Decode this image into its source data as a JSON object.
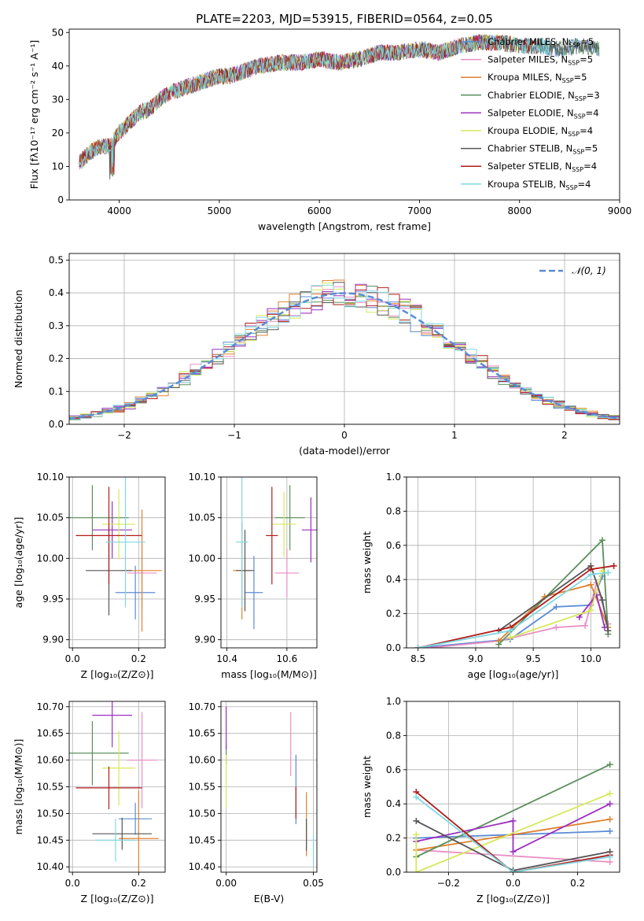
{
  "figure_title": "PLATE=2203, MJD=53915, FIBERID=0564, z=0.05",
  "models": [
    {
      "name": "Chabrier MILES",
      "nssp": "5",
      "color": "#5b8bd6"
    },
    {
      "name": "Salpeter MILES",
      "nssp": "5",
      "color": "#e88fc4"
    },
    {
      "name": "Kroupa MILES",
      "nssp": "5",
      "color": "#e0822e"
    },
    {
      "name": "Chabrier ELODIE",
      "nssp": "3",
      "color": "#5c8f5c"
    },
    {
      "name": "Salpeter ELODIE",
      "nssp": "4",
      "color": "#9b2fbf"
    },
    {
      "name": "Kroupa ELODIE",
      "nssp": "4",
      "color": "#d6e85a"
    },
    {
      "name": "Chabrier STELIB",
      "nssp": "5",
      "color": "#555555"
    },
    {
      "name": "Salpeter STELIB",
      "nssp": "4",
      "color": "#b31b1b"
    },
    {
      "name": "Kroupa STELIB",
      "nssp": "4",
      "color": "#7fd8e0"
    }
  ],
  "chart_data": [
    {
      "id": "spectrum",
      "type": "line",
      "xlabel": "wavelength [Angstrom, rest frame]",
      "ylabel": "Flux [fλ10⁻¹⁷ erg cm⁻² s⁻¹ A⁻¹]",
      "xlim": [
        3500,
        9000
      ],
      "ylim": [
        0,
        51
      ],
      "xticks": [
        4000,
        5000,
        6000,
        7000,
        8000,
        9000
      ],
      "yticks": [
        0,
        10,
        20,
        30,
        40,
        50
      ],
      "grid": false,
      "legend": "right",
      "continuum": [
        [
          3600,
          11
        ],
        [
          3700,
          14
        ],
        [
          3800,
          16
        ],
        [
          3900,
          16
        ],
        [
          4000,
          20
        ],
        [
          4100,
          23
        ],
        [
          4200,
          26
        ],
        [
          4300,
          27
        ],
        [
          4400,
          30
        ],
        [
          4500,
          32
        ],
        [
          4600,
          33
        ],
        [
          4700,
          34
        ],
        [
          4800,
          35
        ],
        [
          4900,
          36
        ],
        [
          5000,
          37
        ],
        [
          5100,
          37
        ],
        [
          5200,
          38
        ],
        [
          5300,
          39
        ],
        [
          5400,
          40
        ],
        [
          5600,
          41
        ],
        [
          5800,
          41
        ],
        [
          6000,
          42
        ],
        [
          6200,
          41
        ],
        [
          6400,
          42
        ],
        [
          6600,
          44
        ],
        [
          6800,
          44
        ],
        [
          7000,
          45
        ],
        [
          7200,
          44
        ],
        [
          7400,
          46
        ],
        [
          7600,
          47
        ],
        [
          7800,
          47
        ],
        [
          8000,
          46
        ],
        [
          8200,
          46
        ],
        [
          8400,
          45
        ],
        [
          8600,
          46
        ],
        [
          8800,
          45
        ]
      ]
    },
    {
      "id": "residuals",
      "type": "histogram",
      "xlabel": "(data-model)/error",
      "ylabel": "Normed distribution",
      "xlim": [
        -2.5,
        2.5
      ],
      "ylim": [
        0,
        0.52
      ],
      "xticks": [
        -2,
        -1,
        0,
        1,
        2
      ],
      "xticklabels": [
        "−2",
        "−1",
        "0",
        "1",
        "2"
      ],
      "yticks": [
        0.0,
        0.1,
        0.2,
        0.3,
        0.4,
        0.5
      ],
      "grid": true,
      "legend": "top-right",
      "reference_label": "𝒩(0, 1)",
      "reference_color": "#5b8bd6"
    },
    {
      "id": "age-vs-Z",
      "type": "scatter",
      "xlabel": "Z [log₁₀(Z/Z⊙)]",
      "ylabel": "age  [log₁₀(age/yr)]",
      "xlim": [
        -0.01,
        0.28
      ],
      "ylim": [
        9.89,
        10.1
      ],
      "xticks": [
        0.0,
        0.2
      ],
      "yticks": [
        9.9,
        9.95,
        10.0,
        10.05,
        10.1
      ],
      "grid": true,
      "points": [
        {
          "x": 0.19,
          "y": 9.958,
          "xerr": 0.06,
          "yerr": 0.033
        },
        {
          "x": 0.21,
          "y": 9.982,
          "xerr": 0.045,
          "yerr": 0.045
        },
        {
          "x": 0.21,
          "y": 9.985,
          "xerr": 0.06,
          "yerr": 0.075
        },
        {
          "x": 0.06,
          "y": 10.05,
          "xerr": 0.11,
          "yerr": 0.04
        },
        {
          "x": 0.12,
          "y": 10.035,
          "xerr": 0.06,
          "yerr": 0.035
        },
        {
          "x": 0.14,
          "y": 10.042,
          "xerr": 0.05,
          "yerr": 0.043
        },
        {
          "x": 0.11,
          "y": 9.985,
          "xerr": 0.07,
          "yerr": 0.055
        },
        {
          "x": 0.11,
          "y": 10.028,
          "xerr": 0.1,
          "yerr": 0.06
        },
        {
          "x": 0.16,
          "y": 10.02,
          "xerr": 0.06,
          "yerr": 0.08
        }
      ]
    },
    {
      "id": "age-vs-mass",
      "type": "scatter",
      "xlabel": "mass [log₁₀(M/M⊙)]",
      "ylabel": "",
      "xlim": [
        10.38,
        10.7
      ],
      "ylim": [
        9.89,
        10.1
      ],
      "xticks": [
        10.4,
        10.6
      ],
      "yticks": [
        9.9,
        9.95,
        10.0,
        10.05,
        10.1
      ],
      "grid": true,
      "points": [
        {
          "x": 10.49,
          "y": 9.958,
          "xerr": 0.03,
          "yerr": 0.045
        },
        {
          "x": 10.6,
          "y": 9.982,
          "xerr": 0.04,
          "yerr": 0.03
        },
        {
          "x": 10.45,
          "y": 9.985,
          "xerr": 0.03,
          "yerr": 0.06
        },
        {
          "x": 10.61,
          "y": 10.05,
          "xerr": 0.05,
          "yerr": 0.04
        },
        {
          "x": 10.68,
          "y": 10.035,
          "xerr": 0.03,
          "yerr": 0.04
        },
        {
          "x": 10.59,
          "y": 10.042,
          "xerr": 0.04,
          "yerr": 0.04
        },
        {
          "x": 10.46,
          "y": 9.985,
          "xerr": 0.03,
          "yerr": 0.05
        },
        {
          "x": 10.55,
          "y": 10.028,
          "xerr": 0.02,
          "yerr": 0.06
        },
        {
          "x": 10.45,
          "y": 10.02,
          "xerr": 0.02,
          "yerr": 0.08
        }
      ]
    },
    {
      "id": "weight-vs-age",
      "type": "line",
      "xlabel": "age  [log₁₀(age/yr)]",
      "ylabel": "mass weight",
      "xlim": [
        8.4,
        10.25
      ],
      "ylim": [
        0,
        1.0
      ],
      "xticks": [
        8.5,
        9.0,
        9.5,
        10.0
      ],
      "yticks": [
        0.0,
        0.2,
        0.4,
        0.6,
        0.8,
        1.0
      ],
      "grid": true,
      "series": [
        {
          "x": [
            8.5,
            9.3,
            9.7,
            10.0,
            10.1
          ],
          "y": [
            0.0,
            0.05,
            0.24,
            0.25,
            0.42
          ]
        },
        {
          "x": [
            8.6,
            9.2,
            9.7,
            9.95,
            10.05,
            10.15
          ],
          "y": [
            0.0,
            0.04,
            0.12,
            0.13,
            0.38,
            0.14
          ]
        },
        {
          "x": [
            9.2,
            9.6,
            10.0,
            10.15
          ],
          "y": [
            0.04,
            0.3,
            0.37,
            0.12
          ]
        },
        {
          "x": [
            9.2,
            10.1,
            10.15
          ],
          "y": [
            0.02,
            0.63,
            0.08
          ]
        },
        {
          "x": [
            9.9,
            10.05,
            10.12
          ],
          "y": [
            0.18,
            0.31,
            0.12
          ]
        },
        {
          "x": [
            9.3,
            10.0,
            10.1
          ],
          "y": [
            0.06,
            0.22,
            0.45
          ]
        },
        {
          "x": [
            9.2,
            10.0,
            10.1,
            10.15
          ],
          "y": [
            0.1,
            0.48,
            0.28,
            0.1
          ]
        },
        {
          "x": [
            8.5,
            9.3,
            10.0,
            10.2
          ],
          "y": [
            0.0,
            0.12,
            0.46,
            0.48
          ]
        },
        {
          "x": [
            8.5,
            9.3,
            10.0,
            10.15
          ],
          "y": [
            0.0,
            0.1,
            0.43,
            0.44
          ]
        }
      ]
    },
    {
      "id": "mass-vs-Z",
      "type": "scatter",
      "xlabel": "Z [log₁₀(Z/Z⊙)]",
      "ylabel": "mass [log₁₀(M/M⊙)]",
      "xlim": [
        -0.01,
        0.28
      ],
      "ylim": [
        10.39,
        10.71
      ],
      "xticks": [
        0.0,
        0.2
      ],
      "yticks": [
        10.4,
        10.45,
        10.5,
        10.55,
        10.6,
        10.65,
        10.7
      ],
      "grid": true,
      "points": [
        {
          "x": 0.19,
          "y": 10.49,
          "xerr": 0.05,
          "yerr": 0.03
        },
        {
          "x": 0.21,
          "y": 10.6,
          "xerr": 0.045,
          "yerr": 0.09
        },
        {
          "x": 0.2,
          "y": 10.453,
          "xerr": 0.06,
          "yerr": 0.09
        },
        {
          "x": 0.06,
          "y": 10.613,
          "xerr": 0.11,
          "yerr": 0.06
        },
        {
          "x": 0.12,
          "y": 10.684,
          "xerr": 0.06,
          "yerr": 0.06
        },
        {
          "x": 0.14,
          "y": 10.585,
          "xerr": 0.05,
          "yerr": 0.07
        },
        {
          "x": 0.15,
          "y": 10.462,
          "xerr": 0.09,
          "yerr": 0.03
        },
        {
          "x": 0.11,
          "y": 10.548,
          "xerr": 0.1,
          "yerr": 0.04
        },
        {
          "x": 0.13,
          "y": 10.45,
          "xerr": 0.06,
          "yerr": 0.04
        }
      ]
    },
    {
      "id": "mass-vs-EBV",
      "type": "scatter",
      "xlabel": "E(B-V)",
      "ylabel": "",
      "xlim": [
        -0.003,
        0.052
      ],
      "ylim": [
        10.39,
        10.71
      ],
      "xticks": [
        0.0,
        0.05
      ],
      "yticks": [
        10.4,
        10.45,
        10.5,
        10.55,
        10.6,
        10.65,
        10.7
      ],
      "grid": true,
      "points": [
        {
          "x": 0.04,
          "y": 10.545,
          "xerr": 0.0,
          "yerr": 0.065
        },
        {
          "x": 0.037,
          "y": 10.63,
          "xerr": 0.0,
          "yerr": 0.06
        },
        {
          "x": 0.046,
          "y": 10.48,
          "xerr": 0.0,
          "yerr": 0.06
        },
        {
          "x": 0.0,
          "y": 10.612,
          "xerr": 0.0,
          "yerr": 0.02
        },
        {
          "x": 0.0,
          "y": 10.66,
          "xerr": 0.0,
          "yerr": 0.04
        },
        {
          "x": 0.0,
          "y": 10.56,
          "xerr": 0.0,
          "yerr": 0.05
        },
        {
          "x": 0.046,
          "y": 10.46,
          "xerr": 0.0,
          "yerr": 0.03
        },
        {
          "x": 0.04,
          "y": 10.52,
          "xerr": 0.0,
          "yerr": 0.03
        },
        {
          "x": 0.05,
          "y": 10.43,
          "xerr": 0.0,
          "yerr": 0.03
        }
      ]
    },
    {
      "id": "weight-vs-Z",
      "type": "line",
      "xlabel": "Z [log₁₀(Z/Z⊙)]",
      "ylabel": "mass weight",
      "xlim": [
        -0.33,
        0.33
      ],
      "ylim": [
        0,
        1.0
      ],
      "xticks": [
        -0.2,
        0.0,
        0.2
      ],
      "xticklabels": [
        "−0.2",
        "0.0",
        "0.2"
      ],
      "yticks": [
        0.0,
        0.2,
        0.4,
        0.6,
        0.8,
        1.0
      ],
      "grid": true,
      "series": [
        {
          "x": [
            -0.3,
            0.3
          ],
          "y": [
            0.2,
            0.24
          ]
        },
        {
          "x": [
            -0.3,
            0.3
          ],
          "y": [
            0.13,
            0.06
          ]
        },
        {
          "x": [
            -0.3,
            0.3
          ],
          "y": [
            0.13,
            0.31
          ]
        },
        {
          "x": [
            -0.3,
            0.3
          ],
          "y": [
            0.09,
            0.63
          ]
        },
        {
          "x": [
            -0.3,
            0.0,
            0.0,
            0.3
          ],
          "y": [
            0.18,
            0.3,
            0.12,
            0.4
          ]
        },
        {
          "x": [
            -0.3,
            -0.3,
            0.3
          ],
          "y": [
            0.22,
            0.0,
            0.46
          ]
        },
        {
          "x": [
            -0.3,
            0.0,
            0.3
          ],
          "y": [
            0.3,
            0.01,
            0.12
          ]
        },
        {
          "x": [
            -0.3,
            0.0,
            0.3
          ],
          "y": [
            0.47,
            0.0,
            0.1
          ]
        },
        {
          "x": [
            -0.3,
            0.0,
            0.3
          ],
          "y": [
            0.44,
            0.0,
            0.09
          ]
        }
      ]
    }
  ]
}
